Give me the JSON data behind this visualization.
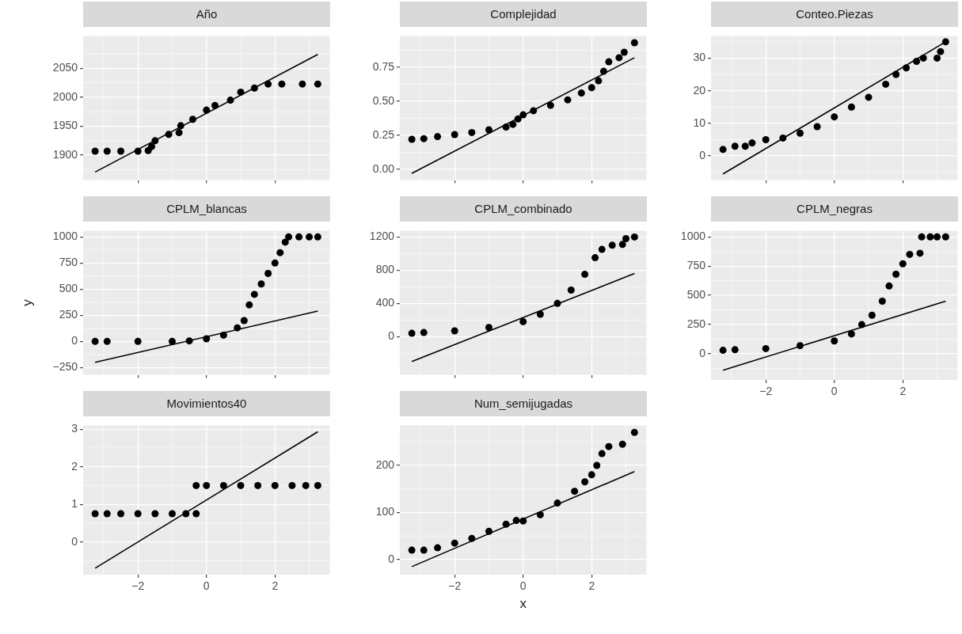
{
  "chart_data": [
    {
      "type": "scatter",
      "title": "Año",
      "xlim": [
        -3.6,
        3.6
      ],
      "xticks": [
        -2,
        0,
        2
      ],
      "ylim": [
        1857,
        2106
      ],
      "yticks": [
        1900,
        1950,
        2000,
        2050
      ],
      "grid": true,
      "tick_labels": "y",
      "series": [
        {
          "type": "scatter",
          "marker": "circle",
          "color": "#000000",
          "x": [
            -3.25,
            -2.9,
            -2.5,
            -2,
            -1.7,
            -1.6,
            -1.5,
            -1.1,
            -0.8,
            -0.75,
            -0.4,
            0,
            0.25,
            0.7,
            1,
            1.4,
            1.8,
            2.2,
            2.8,
            3.25
          ],
          "values": [
            1907,
            1907,
            1907,
            1907,
            1908,
            1915,
            1925,
            1936,
            1939,
            1951,
            1962,
            1978,
            1986,
            1995,
            2009,
            2016,
            2023,
            2023,
            2023,
            2023
          ]
        },
        {
          "type": "line",
          "marker": "none",
          "color": "#000000",
          "x": [
            -3.25,
            3.25
          ],
          "values": [
            1871,
            2074
          ]
        }
      ]
    },
    {
      "type": "scatter",
      "title": "Complejidad",
      "xlim": [
        -3.6,
        3.6
      ],
      "xticks": [
        -2,
        0,
        2
      ],
      "ylim": [
        -0.08,
        0.98
      ],
      "yticks": [
        {
          "value": 0,
          "label": "0.00"
        },
        0.25,
        {
          "value": 0.5,
          "label": "0.50"
        },
        0.75
      ],
      "grid": true,
      "tick_labels": "y",
      "series": [
        {
          "type": "scatter",
          "marker": "circle",
          "color": "#000000",
          "x": [
            -3.25,
            -2.9,
            -2.5,
            -2,
            -1.5,
            -1,
            -0.5,
            -0.3,
            -0.15,
            0,
            0.3,
            0.8,
            1.3,
            1.7,
            2,
            2.2,
            2.35,
            2.5,
            2.8,
            2.95,
            3.25
          ],
          "values": [
            0.22,
            0.225,
            0.24,
            0.255,
            0.27,
            0.29,
            0.31,
            0.33,
            0.37,
            0.4,
            0.43,
            0.47,
            0.51,
            0.56,
            0.6,
            0.65,
            0.72,
            0.79,
            0.82,
            0.86,
            0.93
          ]
        },
        {
          "type": "line",
          "marker": "none",
          "color": "#000000",
          "x": [
            -3.25,
            3.25
          ],
          "values": [
            -0.03,
            0.82
          ]
        }
      ]
    },
    {
      "type": "scatter",
      "title": "Conteo.Piezas",
      "xlim": [
        -3.6,
        3.6
      ],
      "xticks": [
        -2,
        0,
        2
      ],
      "ylim": [
        -7.4,
        36.8
      ],
      "yticks": [
        0,
        10,
        20,
        30
      ],
      "grid": true,
      "tick_labels": "y",
      "series": [
        {
          "type": "scatter",
          "marker": "circle",
          "color": "#000000",
          "x": [
            -3.25,
            -2.9,
            -2.6,
            -2.4,
            -2,
            -1.5,
            -1,
            -0.5,
            0,
            0.5,
            1,
            1.5,
            1.8,
            2.1,
            2.4,
            2.6,
            3,
            3.1,
            3.25
          ],
          "values": [
            2,
            3,
            3,
            4,
            5,
            5.5,
            7,
            9,
            12,
            15,
            18,
            22,
            25,
            27,
            29,
            30,
            30,
            32,
            35
          ]
        },
        {
          "type": "line",
          "marker": "none",
          "color": "#000000",
          "x": [
            -3.25,
            3.25
          ],
          "values": [
            -5.5,
            35
          ]
        }
      ]
    },
    {
      "type": "scatter",
      "title": "CPLM_blancas",
      "ylabel": "y",
      "xlim": [
        -3.6,
        3.6
      ],
      "xticks": [
        -2,
        0,
        2
      ],
      "ylim": [
        -320,
        1060
      ],
      "yticks": [
        -250,
        0,
        250,
        500,
        750,
        1000
      ],
      "grid": true,
      "tick_labels": "y",
      "series": [
        {
          "type": "scatter",
          "marker": "circle",
          "color": "#000000",
          "x": [
            -3.25,
            -2.9,
            -2,
            -1,
            -0.5,
            0,
            0.5,
            0.9,
            1.1,
            1.25,
            1.4,
            1.6,
            1.8,
            2,
            2.15,
            2.3,
            2.4,
            2.7,
            3,
            3.25
          ],
          "values": [
            0,
            0,
            0,
            0,
            5,
            25,
            60,
            130,
            200,
            350,
            450,
            550,
            650,
            750,
            850,
            950,
            1000,
            1000,
            1000,
            1000
          ]
        },
        {
          "type": "line",
          "marker": "none",
          "color": "#000000",
          "x": [
            -3.25,
            3.25
          ],
          "values": [
            -200,
            290
          ]
        }
      ]
    },
    {
      "type": "scatter",
      "title": "CPLM_combinado",
      "xlim": [
        -3.6,
        3.6
      ],
      "xticks": [
        -2,
        0,
        2
      ],
      "ylim": [
        -460,
        1276
      ],
      "yticks": [
        0,
        400,
        800,
        1200
      ],
      "grid": true,
      "tick_labels": "y",
      "series": [
        {
          "type": "scatter",
          "marker": "circle",
          "color": "#000000",
          "x": [
            -3.25,
            -2.9,
            -2,
            -1,
            0,
            0.5,
            1,
            1.4,
            1.8,
            2.1,
            2.3,
            2.6,
            2.9,
            3,
            3.25
          ],
          "values": [
            40,
            50,
            70,
            110,
            180,
            270,
            400,
            560,
            750,
            950,
            1050,
            1100,
            1110,
            1180,
            1200
          ]
        },
        {
          "type": "line",
          "marker": "none",
          "color": "#000000",
          "x": [
            -3.25,
            3.25
          ],
          "values": [
            -300,
            760
          ]
        }
      ]
    },
    {
      "type": "scatter",
      "title": "CPLM_negras",
      "xlim": [
        -3.6,
        3.6
      ],
      "xticks": [
        -2,
        0,
        2
      ],
      "ylim": [
        -223,
        1053
      ],
      "yticks": [
        0,
        250,
        500,
        750,
        1000
      ],
      "grid": true,
      "series": [
        {
          "type": "scatter",
          "marker": "circle",
          "color": "#000000",
          "x": [
            -3.25,
            -2.9,
            -2,
            -1,
            0,
            0.5,
            0.8,
            1.1,
            1.4,
            1.6,
            1.8,
            2,
            2.2,
            2.5,
            2.55,
            2.8,
            3,
            3.25
          ],
          "values": [
            30,
            35,
            45,
            70,
            110,
            170,
            250,
            330,
            450,
            580,
            680,
            770,
            850,
            860,
            1000,
            1000,
            1000,
            1000
          ]
        },
        {
          "type": "line",
          "marker": "none",
          "color": "#000000",
          "x": [
            -3.25,
            3.25
          ],
          "values": [
            -140,
            450
          ]
        }
      ]
    },
    {
      "type": "scatter",
      "title": "Movimientos40",
      "xlim": [
        -3.6,
        3.6
      ],
      "xticks": [
        -2,
        0,
        2
      ],
      "ylim": [
        -0.87,
        3.1
      ],
      "yticks": [
        0,
        1,
        2,
        3
      ],
      "grid": true,
      "series": [
        {
          "type": "scatter",
          "marker": "circle",
          "color": "#000000",
          "x": [
            -3.25,
            -2.9,
            -2.5,
            -2,
            -1.5,
            -1,
            -0.6,
            -0.3,
            -0.3,
            0,
            0.5,
            1,
            1.5,
            2,
            2.5,
            2.9,
            3.25
          ],
          "values": [
            0.75,
            0.75,
            0.75,
            0.75,
            0.75,
            0.75,
            0.75,
            0.75,
            1.5,
            1.5,
            1.5,
            1.5,
            1.5,
            1.5,
            1.5,
            1.5,
            1.5
          ]
        },
        {
          "type": "line",
          "marker": "none",
          "color": "#000000",
          "x": [
            -3.25,
            3.25
          ],
          "values": [
            -0.7,
            2.93
          ]
        }
      ]
    },
    {
      "type": "scatter",
      "title": "Num_semijugadas",
      "xlabel": "x",
      "xlim": [
        -3.6,
        3.6
      ],
      "xticks": [
        -2,
        0,
        2
      ],
      "ylim": [
        -32,
        285
      ],
      "yticks": [
        0,
        100,
        200
      ],
      "grid": true,
      "series": [
        {
          "type": "scatter",
          "marker": "circle",
          "color": "#000000",
          "x": [
            -3.25,
            -2.9,
            -2.5,
            -2,
            -1.5,
            -1,
            -0.5,
            -0.2,
            0,
            0.5,
            1,
            1.5,
            1.8,
            2,
            2.15,
            2.3,
            2.5,
            2.9,
            3.25
          ],
          "values": [
            20,
            20,
            25,
            35,
            45,
            60,
            75,
            83,
            82,
            95,
            120,
            145,
            165,
            180,
            200,
            225,
            240,
            245,
            270
          ]
        },
        {
          "type": "line",
          "marker": "none",
          "color": "#000000",
          "x": [
            -3.25,
            3.25
          ],
          "values": [
            -15,
            187
          ]
        }
      ]
    }
  ]
}
